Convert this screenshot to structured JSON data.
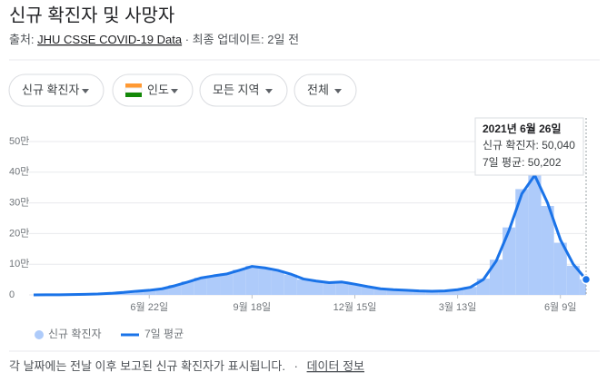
{
  "header": {
    "title": "신규 확진자 및 사망자",
    "source_label": "출처:",
    "source_link": "JHU CSSE COVID-19 Data",
    "updated": "· 최종 업데이트: 2일 전"
  },
  "filters": [
    "신규 확진자",
    "인도",
    "모든 지역",
    "전체"
  ],
  "tooltip": {
    "date": "2021년 6월 26일",
    "lines": [
      "신규 확진자: 50,040",
      "7일 평균: 50,202"
    ]
  },
  "footer": {
    "note": "각 날짜에는 전날 이후 보고된 신규 확진자가 표시됩니다.",
    "sep": "·",
    "link": "데이터 정보"
  },
  "chart_data": {
    "type": "bar",
    "categories": [
      null,
      null,
      null,
      null,
      null,
      null,
      null,
      null,
      null,
      "6월 22일",
      null,
      null,
      null,
      null,
      null,
      null,
      null,
      "9월 18일",
      null,
      null,
      null,
      null,
      null,
      null,
      null,
      "12월 15일",
      null,
      null,
      null,
      null,
      null,
      null,
      null,
      "3월 13일",
      null,
      null,
      null,
      null,
      null,
      null,
      null,
      "6월 9일",
      null,
      null
    ],
    "series": [
      {
        "name": "신규 확진자",
        "color": "#aecbfa",
        "values": [
          100,
          250,
          600,
          1100,
          2200,
          3300,
          5500,
          8500,
          13000,
          16000,
          21000,
          32000,
          44000,
          56000,
          63000,
          70000,
          82000,
          95000,
          87000,
          79000,
          66000,
          50000,
          44000,
          38000,
          43000,
          34000,
          26000,
          19000,
          16000,
          14000,
          12500,
          11500,
          13500,
          18000,
          26000,
          53000,
          115000,
          220000,
          345000,
          400000,
          290000,
          170000,
          95000,
          50040
        ]
      },
      {
        "name": "7일 평균",
        "type": "line",
        "color": "#1a73e8",
        "values": [
          100,
          200,
          500,
          1000,
          2000,
          3000,
          5000,
          8000,
          12000,
          15000,
          20000,
          30000,
          42000,
          55000,
          62000,
          68000,
          80000,
          93000,
          88000,
          80000,
          68000,
          52000,
          45000,
          40000,
          42000,
          35000,
          27000,
          20000,
          17000,
          15000,
          13000,
          12000,
          13000,
          17000,
          25000,
          50000,
          110000,
          210000,
          330000,
          390000,
          300000,
          180000,
          100000,
          50202
        ]
      }
    ],
    "ylim": [
      0,
      500000
    ],
    "yticks": [
      0,
      {
        "value": 100000,
        "label": "10만"
      },
      {
        "value": 200000,
        "label": "20만"
      },
      {
        "value": 300000,
        "label": "30만"
      },
      {
        "value": 400000,
        "label": "40만"
      },
      {
        "value": 500000,
        "label": "50만"
      }
    ],
    "grid": true,
    "legend": "bottom"
  }
}
